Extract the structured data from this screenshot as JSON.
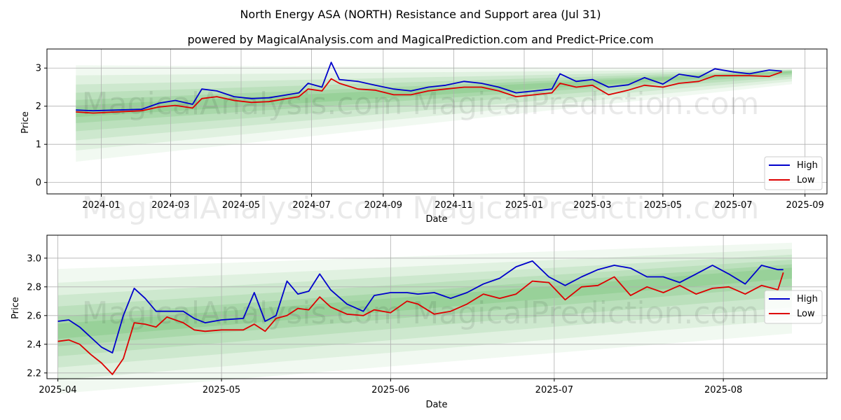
{
  "title": "North Energy ASA (NORTH) Resistance and Support area (Jul 31)",
  "subtitle": "powered by MagicalAnalysis.com and MagicalPrediction.com and Predict-Price.com",
  "watermark": "MagicalAnalysis.com    MagicalPrediction.com",
  "colors": {
    "high": "#0000cc",
    "low": "#dd0000",
    "band": "#4caf50",
    "grid": "#b0b0b0"
  },
  "chart_data": [
    {
      "type": "line",
      "xlabel": "Date",
      "ylabel": "Price",
      "x_ticks": [
        "2024-01",
        "2024-03",
        "2024-05",
        "2024-07",
        "2024-09",
        "2024-11",
        "2025-01",
        "2025-03",
        "2025-05",
        "2025-07",
        "2025-09"
      ],
      "y_ticks": [
        0,
        1,
        2,
        3
      ],
      "xlim": [
        "2023-11-15",
        "2025-09-20"
      ],
      "ylim": [
        -0.3,
        3.5
      ],
      "grid": true,
      "legend": "right",
      "series": [
        {
          "name": "High",
          "dates": [
            "2023-12-10",
            "2023-12-25",
            "2024-01-15",
            "2024-02-05",
            "2024-02-20",
            "2024-03-05",
            "2024-03-20",
            "2024-03-28",
            "2024-04-10",
            "2024-04-25",
            "2024-05-10",
            "2024-05-25",
            "2024-06-10",
            "2024-06-20",
            "2024-06-28",
            "2024-07-10",
            "2024-07-18",
            "2024-07-25",
            "2024-08-10",
            "2024-08-25",
            "2024-09-10",
            "2024-09-25",
            "2024-10-10",
            "2024-10-25",
            "2024-11-10",
            "2024-11-25",
            "2024-12-10",
            "2024-12-25",
            "2025-01-10",
            "2025-01-25",
            "2025-02-01",
            "2025-02-15",
            "2025-03-01",
            "2025-03-15",
            "2025-04-01",
            "2025-04-15",
            "2025-05-01",
            "2025-05-15",
            "2025-06-01",
            "2025-06-15",
            "2025-07-01",
            "2025-07-15",
            "2025-08-01",
            "2025-08-12"
          ],
          "values": [
            1.9,
            1.88,
            1.9,
            1.92,
            2.08,
            2.15,
            2.05,
            2.45,
            2.4,
            2.25,
            2.2,
            2.22,
            2.3,
            2.35,
            2.6,
            2.5,
            3.15,
            2.7,
            2.65,
            2.55,
            2.45,
            2.4,
            2.5,
            2.55,
            2.65,
            2.6,
            2.5,
            2.35,
            2.4,
            2.45,
            2.85,
            2.65,
            2.7,
            2.5,
            2.56,
            2.75,
            2.58,
            2.84,
            2.76,
            2.98,
            2.9,
            2.85,
            2.95,
            2.92
          ]
        },
        {
          "name": "Low",
          "dates": [
            "2023-12-10",
            "2023-12-25",
            "2024-01-15",
            "2024-02-05",
            "2024-02-20",
            "2024-03-05",
            "2024-03-20",
            "2024-03-28",
            "2024-04-10",
            "2024-04-25",
            "2024-05-10",
            "2024-05-25",
            "2024-06-10",
            "2024-06-20",
            "2024-06-28",
            "2024-07-10",
            "2024-07-18",
            "2024-07-25",
            "2024-08-10",
            "2024-08-25",
            "2024-09-10",
            "2024-09-25",
            "2024-10-10",
            "2024-10-25",
            "2024-11-10",
            "2024-11-25",
            "2024-12-10",
            "2024-12-25",
            "2025-01-10",
            "2025-01-25",
            "2025-02-01",
            "2025-02-15",
            "2025-03-01",
            "2025-03-15",
            "2025-04-01",
            "2025-04-15",
            "2025-05-01",
            "2025-05-15",
            "2025-06-01",
            "2025-06-15",
            "2025-07-01",
            "2025-07-15",
            "2025-08-01",
            "2025-08-12"
          ],
          "values": [
            1.85,
            1.82,
            1.85,
            1.88,
            1.98,
            2.02,
            1.95,
            2.2,
            2.25,
            2.15,
            2.1,
            2.12,
            2.2,
            2.25,
            2.45,
            2.4,
            2.72,
            2.6,
            2.45,
            2.42,
            2.3,
            2.3,
            2.4,
            2.45,
            2.5,
            2.5,
            2.4,
            2.25,
            2.3,
            2.35,
            2.6,
            2.5,
            2.55,
            2.3,
            2.42,
            2.55,
            2.5,
            2.6,
            2.65,
            2.8,
            2.8,
            2.8,
            2.78,
            2.9
          ]
        }
      ]
    },
    {
      "type": "line",
      "xlabel": "Date",
      "ylabel": "Price",
      "x_ticks": [
        "2025-04",
        "2025-05",
        "2025-06",
        "2025-07",
        "2025-08"
      ],
      "y_ticks": [
        2.2,
        2.4,
        2.6,
        2.8,
        3.0
      ],
      "xlim": [
        "2025-03-30",
        "2025-08-20"
      ],
      "ylim": [
        2.16,
        3.16
      ],
      "grid": true,
      "legend": "right",
      "series": [
        {
          "name": "High",
          "dates": [
            "2025-04-01",
            "2025-04-03",
            "2025-04-05",
            "2025-04-07",
            "2025-04-09",
            "2025-04-11",
            "2025-04-13",
            "2025-04-15",
            "2025-04-17",
            "2025-04-19",
            "2025-04-21",
            "2025-04-24",
            "2025-04-26",
            "2025-04-28",
            "2025-05-01",
            "2025-05-05",
            "2025-05-07",
            "2025-05-09",
            "2025-05-11",
            "2025-05-13",
            "2025-05-15",
            "2025-05-17",
            "2025-05-19",
            "2025-05-21",
            "2025-05-24",
            "2025-05-27",
            "2025-05-29",
            "2025-06-01",
            "2025-06-04",
            "2025-06-06",
            "2025-06-09",
            "2025-06-12",
            "2025-06-15",
            "2025-06-18",
            "2025-06-21",
            "2025-06-24",
            "2025-06-27",
            "2025-06-30",
            "2025-07-03",
            "2025-07-06",
            "2025-07-09",
            "2025-07-12",
            "2025-07-15",
            "2025-07-18",
            "2025-07-21",
            "2025-07-24",
            "2025-07-27",
            "2025-07-30",
            "2025-08-02",
            "2025-08-05",
            "2025-08-08",
            "2025-08-11",
            "2025-08-12"
          ],
          "values": [
            2.56,
            2.57,
            2.52,
            2.45,
            2.38,
            2.34,
            2.6,
            2.79,
            2.72,
            2.63,
            2.63,
            2.63,
            2.58,
            2.55,
            2.57,
            2.58,
            2.76,
            2.56,
            2.6,
            2.84,
            2.75,
            2.77,
            2.89,
            2.78,
            2.68,
            2.63,
            2.74,
            2.76,
            2.76,
            2.75,
            2.76,
            2.72,
            2.76,
            2.82,
            2.86,
            2.94,
            2.98,
            2.87,
            2.81,
            2.87,
            2.92,
            2.95,
            2.93,
            2.87,
            2.87,
            2.83,
            2.89,
            2.95,
            2.89,
            2.82,
            2.95,
            2.92,
            2.92
          ]
        },
        {
          "name": "Low",
          "dates": [
            "2025-04-01",
            "2025-04-03",
            "2025-04-05",
            "2025-04-07",
            "2025-04-09",
            "2025-04-11",
            "2025-04-13",
            "2025-04-15",
            "2025-04-17",
            "2025-04-19",
            "2025-04-21",
            "2025-04-24",
            "2025-04-26",
            "2025-04-28",
            "2025-05-01",
            "2025-05-05",
            "2025-05-07",
            "2025-05-09",
            "2025-05-11",
            "2025-05-13",
            "2025-05-15",
            "2025-05-17",
            "2025-05-19",
            "2025-05-21",
            "2025-05-24",
            "2025-05-27",
            "2025-05-29",
            "2025-06-01",
            "2025-06-04",
            "2025-06-06",
            "2025-06-09",
            "2025-06-12",
            "2025-06-15",
            "2025-06-18",
            "2025-06-21",
            "2025-06-24",
            "2025-06-27",
            "2025-06-30",
            "2025-07-03",
            "2025-07-06",
            "2025-07-09",
            "2025-07-12",
            "2025-07-15",
            "2025-07-18",
            "2025-07-21",
            "2025-07-24",
            "2025-07-27",
            "2025-07-30",
            "2025-08-02",
            "2025-08-05",
            "2025-08-08",
            "2025-08-11",
            "2025-08-12"
          ],
          "values": [
            2.42,
            2.43,
            2.4,
            2.33,
            2.27,
            2.19,
            2.3,
            2.55,
            2.54,
            2.52,
            2.59,
            2.55,
            2.5,
            2.49,
            2.5,
            2.5,
            2.54,
            2.49,
            2.58,
            2.6,
            2.65,
            2.64,
            2.73,
            2.66,
            2.61,
            2.6,
            2.64,
            2.62,
            2.7,
            2.68,
            2.61,
            2.63,
            2.68,
            2.75,
            2.72,
            2.75,
            2.84,
            2.83,
            2.71,
            2.8,
            2.81,
            2.87,
            2.74,
            2.8,
            2.76,
            2.81,
            2.75,
            2.79,
            2.8,
            2.75,
            2.81,
            2.78,
            2.9
          ]
        }
      ]
    }
  ]
}
